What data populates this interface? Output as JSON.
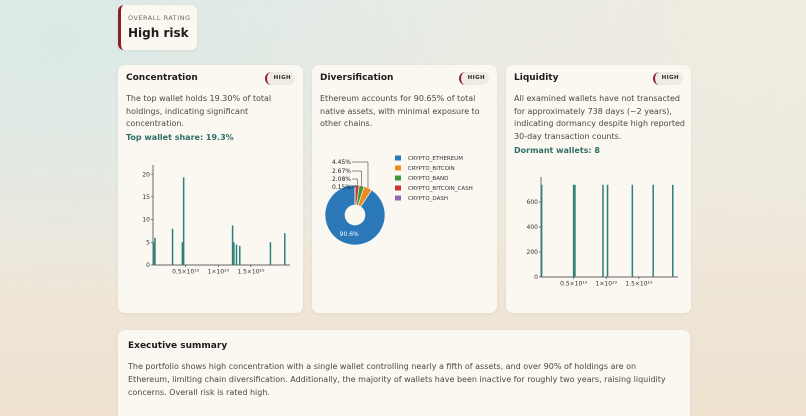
{
  "overall": {
    "label": "OVERALL RATING",
    "value": "High risk"
  },
  "cards": [
    {
      "title": "Concentration",
      "badge": "HIGH",
      "text": "The top wallet holds 19.30% of total holdings, indicating significant concentration.",
      "metric": "Top wallet share: 19.3%"
    },
    {
      "title": "Diversification",
      "badge": "HIGH",
      "text": "Ethereum accounts for 90.65% of total native assets, with minimal exposure to other chains."
    },
    {
      "title": "Liquidity",
      "badge": "HIGH",
      "text": "All examined wallets have not transacted for approximately 738 days (~2 years), indicating dormancy despite high reported 30-day transaction counts.",
      "metric": "Dormant wallets: 8"
    }
  ],
  "summary": {
    "title": "Executive summary",
    "text": "The portfolio shows high concentration with a single wallet controlling nearly a fifth of assets, and over 90% of holdings are on Ethereum, limiting chain diversification. Additionally, the majority of wallets have been inactive for roughly two years, raising liquidity concerns. Overall risk is rated high."
  },
  "colors": {
    "accent": "#8e1d2c",
    "teal": "#2e8079",
    "metric": "#2e6e67"
  },
  "chart_data": [
    {
      "type": "bar",
      "xlim": [
        0,
        2.1e+19
      ],
      "ylim": [
        0,
        22
      ],
      "yticks": [
        0,
        5,
        10,
        15,
        20
      ],
      "xticks": [
        5e+18,
        1e+19,
        1.5e+19
      ],
      "xtick_labels": [
        "0.5×10¹⁹",
        "1×10¹⁹",
        "1.5×10¹⁹"
      ],
      "x": [
        1e+17,
        3e+17,
        3e+18,
        4.5e+18,
        4.7e+18,
        1.22e+19,
        1.24e+19,
        1.28e+19,
        1.33e+19,
        1.8e+19,
        2.02e+19
      ],
      "values": [
        5,
        6,
        8,
        5,
        19.3,
        8.7,
        5,
        4.5,
        4.2,
        5,
        7
      ]
    },
    {
      "type": "pie",
      "categories": [
        "CRYPTO_ETHEREUM",
        "CRYPTO_BITCOIN",
        "CRYPTO_BAND",
        "CRYPTO_BITCOIN_CASH",
        "CRYPTO_DASH"
      ],
      "values": [
        90.65,
        4.45,
        2.67,
        2.08,
        0.15
      ],
      "labels": [
        "90.6%",
        "4.45%",
        "2.67%",
        "2.08%",
        "0.15%"
      ],
      "colors": [
        "#2a78b8",
        "#ee8a1f",
        "#3a9a3a",
        "#c8352e",
        "#9467bd"
      ]
    },
    {
      "type": "bar",
      "xlim": [
        0,
        2.1e+19
      ],
      "ylim": [
        0,
        800
      ],
      "yticks": [
        0,
        200,
        400,
        600
      ],
      "xticks": [
        5e+18,
        1e+19,
        1.5e+19
      ],
      "xtick_labels": [
        "0.5×10¹⁹",
        "1×10¹⁹",
        "1.5×10¹⁹"
      ],
      "x": [
        1e+17,
        5e+18,
        5.2e+18,
        9.5e+18,
        1.02e+19,
        1.4e+19,
        1.72e+19,
        2.02e+19
      ],
      "values": [
        738,
        738,
        738,
        738,
        738,
        738,
        738,
        738
      ]
    }
  ]
}
